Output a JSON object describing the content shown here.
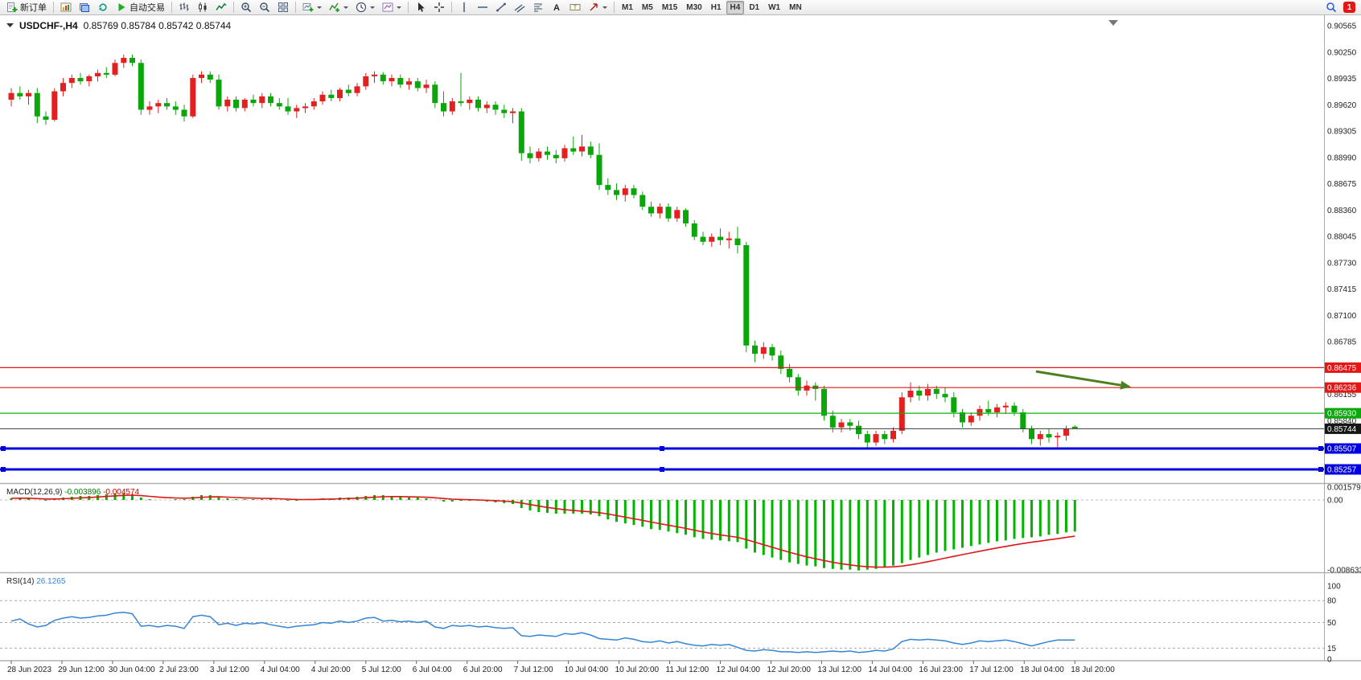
{
  "window": {
    "chart_title_symbol": "USDCHF-,H4",
    "chart_title_ohlc": "0.85769 0.85784 0.85742 0.85744"
  },
  "toolbar": {
    "new_order_label": "新订单",
    "autotrade_label": "自动交易",
    "timeframes": [
      "M1",
      "M5",
      "M15",
      "M30",
      "H1",
      "H4",
      "D1",
      "W1",
      "MN"
    ],
    "active_timeframe": "H4",
    "notification_badge": "1",
    "icon_names": [
      "new-order-icon",
      "chart-window-icon",
      "profiles-icon",
      "refresh-icon",
      "autotrade-play-icon",
      "ohlc-bars-icon",
      "candlestick-icon",
      "line-chart-icon",
      "zoom-in-icon",
      "zoom-out-icon",
      "tile-windows-icon",
      "new-chart-icon",
      "indicators-icon",
      "periods-clock-icon",
      "templates-icon",
      "cursor-icon",
      "crosshair-icon",
      "vertical-line-icon",
      "horizontal-line-icon",
      "trendline-icon",
      "channel-icon",
      "fibonacci-icon",
      "text-icon",
      "text-label-icon",
      "arrows-icon",
      "search-icon"
    ]
  },
  "chart_data": {
    "type": "candlestick",
    "symbol": "USDCHF-",
    "timeframe": "H4",
    "ohlc_display": {
      "open": "0.85769",
      "high": "0.85784",
      "low": "0.85742",
      "close": "0.85744"
    },
    "pip": 0.0001,
    "colors": {
      "up": "#e32020",
      "down": "#0aa60a",
      "background": "#ffffff"
    },
    "price_axis": {
      "ylim": [
        0.85094,
        0.90642
      ],
      "tick_labels": [
        "0.90565",
        "0.90250",
        "0.89935",
        "0.89620",
        "0.89305",
        "0.88990",
        "0.88675",
        "0.88360",
        "0.88045",
        "0.87730",
        "0.87415",
        "0.87100",
        "0.86785",
        "0.86155",
        "0.85840"
      ]
    },
    "candles_ohlc_pips": [
      [
        8968,
        8982,
        8960,
        8976
      ],
      [
        8976,
        8984,
        8968,
        8972
      ],
      [
        8972,
        8980,
        8962,
        8976
      ],
      [
        8976,
        8982,
        8940,
        8948
      ],
      [
        8948,
        8954,
        8938,
        8944
      ],
      [
        8944,
        8982,
        8942,
        8978
      ],
      [
        8978,
        8994,
        8972,
        8988
      ],
      [
        8988,
        8998,
        8982,
        8994
      ],
      [
        8994,
        9000,
        8986,
        8990
      ],
      [
        8990,
        8998,
        8984,
        8996
      ],
      [
        8996,
        9004,
        8990,
        9000
      ],
      [
        9000,
        9007,
        8994,
        8998
      ],
      [
        8998,
        9016,
        8996,
        9012
      ],
      [
        9012,
        9022,
        9006,
        9018
      ],
      [
        9018,
        9022,
        9008,
        9012
      ],
      [
        9012,
        9016,
        8950,
        8956
      ],
      [
        8956,
        8966,
        8950,
        8960
      ],
      [
        8960,
        8968,
        8952,
        8964
      ],
      [
        8964,
        8970,
        8956,
        8960
      ],
      [
        8960,
        8966,
        8950,
        8956
      ],
      [
        8956,
        8962,
        8942,
        8948
      ],
      [
        8948,
        8998,
        8946,
        8994
      ],
      [
        8994,
        9002,
        8988,
        8998
      ],
      [
        8998,
        9002,
        8988,
        8992
      ],
      [
        8992,
        8998,
        8956,
        8960
      ],
      [
        8960,
        8972,
        8954,
        8968
      ],
      [
        8968,
        8972,
        8954,
        8958
      ],
      [
        8958,
        8970,
        8954,
        8968
      ],
      [
        8968,
        8974,
        8960,
        8964
      ],
      [
        8964,
        8976,
        8958,
        8972
      ],
      [
        8972,
        8976,
        8960,
        8964
      ],
      [
        8964,
        8970,
        8956,
        8960
      ],
      [
        8960,
        8970,
        8950,
        8954
      ],
      [
        8954,
        8962,
        8946,
        8958
      ],
      [
        8958,
        8964,
        8952,
        8960
      ],
      [
        8960,
        8970,
        8956,
        8966
      ],
      [
        8966,
        8978,
        8962,
        8974
      ],
      [
        8974,
        8980,
        8966,
        8970
      ],
      [
        8970,
        8982,
        8966,
        8980
      ],
      [
        8980,
        8986,
        8972,
        8976
      ],
      [
        8976,
        8988,
        8972,
        8984
      ],
      [
        8984,
        9000,
        8980,
        8996
      ],
      [
        8996,
        9002,
        8988,
        8998
      ],
      [
        8998,
        9001,
        8986,
        8990
      ],
      [
        8990,
        8998,
        8984,
        8994
      ],
      [
        8994,
        8998,
        8982,
        8986
      ],
      [
        8986,
        8994,
        8980,
        8990
      ],
      [
        8990,
        8994,
        8978,
        8982
      ],
      [
        8982,
        8992,
        8976,
        8986
      ],
      [
        8986,
        8990,
        8958,
        8964
      ],
      [
        8964,
        8978,
        8948,
        8954
      ],
      [
        8954,
        8970,
        8950,
        8966
      ],
      [
        8966,
        9000,
        8960,
        8964
      ],
      [
        8964,
        8972,
        8956,
        8968
      ],
      [
        8968,
        8972,
        8954,
        8958
      ],
      [
        8958,
        8966,
        8952,
        8962
      ],
      [
        8962,
        8966,
        8950,
        8956
      ],
      [
        8956,
        8962,
        8946,
        8952
      ],
      [
        8952,
        8958,
        8940,
        8954
      ],
      [
        8954,
        8958,
        8895,
        8904
      ],
      [
        8904,
        8912,
        8892,
        8898
      ],
      [
        8898,
        8910,
        8894,
        8906
      ],
      [
        8906,
        8912,
        8896,
        8902
      ],
      [
        8902,
        8908,
        8892,
        8898
      ],
      [
        8898,
        8914,
        8894,
        8910
      ],
      [
        8910,
        8924,
        8902,
        8906
      ],
      [
        8906,
        8926,
        8900,
        8912
      ],
      [
        8912,
        8918,
        8898,
        8902
      ],
      [
        8902,
        8916,
        8860,
        8866
      ],
      [
        8866,
        8874,
        8854,
        8860
      ],
      [
        8860,
        8868,
        8848,
        8854
      ],
      [
        8854,
        8866,
        8846,
        8862
      ],
      [
        8862,
        8866,
        8850,
        8854
      ],
      [
        8854,
        8858,
        8836,
        8840
      ],
      [
        8840,
        8846,
        8828,
        8832
      ],
      [
        8832,
        8844,
        8826,
        8840
      ],
      [
        8840,
        8844,
        8822,
        8826
      ],
      [
        8826,
        8840,
        8822,
        8836
      ],
      [
        8836,
        8838,
        8816,
        8820
      ],
      [
        8820,
        8824,
        8800,
        8804
      ],
      [
        8804,
        8810,
        8794,
        8798
      ],
      [
        8798,
        8808,
        8792,
        8804
      ],
      [
        8804,
        8814,
        8794,
        8800
      ],
      [
        8800,
        8810,
        8790,
        8802
      ],
      [
        8802,
        8816,
        8784,
        8794
      ],
      [
        8794,
        8798,
        8666,
        8674
      ],
      [
        8674,
        8680,
        8654,
        8664
      ],
      [
        8664,
        8678,
        8658,
        8672
      ],
      [
        8672,
        8676,
        8656,
        8662
      ],
      [
        8662,
        8668,
        8640,
        8646
      ],
      [
        8646,
        8652,
        8630,
        8636
      ],
      [
        8636,
        8640,
        8614,
        8620
      ],
      [
        8620,
        8632,
        8614,
        8626
      ],
      [
        8626,
        8630,
        8608,
        8622
      ],
      [
        8622,
        8626,
        8584,
        8590
      ],
      [
        8590,
        8596,
        8570,
        8576
      ],
      [
        8576,
        8586,
        8570,
        8582
      ],
      [
        8582,
        8586,
        8572,
        8578
      ],
      [
        8578,
        8584,
        8562,
        8568
      ],
      [
        8568,
        8572,
        8552,
        8558
      ],
      [
        8558,
        8572,
        8554,
        8568
      ],
      [
        8568,
        8572,
        8556,
        8562
      ],
      [
        8562,
        8576,
        8558,
        8572
      ],
      [
        8572,
        8618,
        8568,
        8612
      ],
      [
        8612,
        8630,
        8606,
        8620
      ],
      [
        8620,
        8626,
        8608,
        8614
      ],
      [
        8614,
        8628,
        8608,
        8622
      ],
      [
        8622,
        8626,
        8610,
        8616
      ],
      [
        8616,
        8624,
        8606,
        8612
      ],
      [
        8612,
        8618,
        8588,
        8594
      ],
      [
        8594,
        8598,
        8576,
        8582
      ],
      [
        8582,
        8594,
        8578,
        8590
      ],
      [
        8590,
        8602,
        8584,
        8598
      ],
      [
        8598,
        8608,
        8590,
        8594
      ],
      [
        8594,
        8604,
        8588,
        8600
      ],
      [
        8600,
        8606,
        8592,
        8602
      ],
      [
        8602,
        8606,
        8590,
        8594
      ],
      [
        8594,
        8598,
        8570,
        8574
      ],
      [
        8574,
        8578,
        8556,
        8562
      ],
      [
        8562,
        8572,
        8554,
        8568
      ],
      [
        8568,
        8574,
        8558,
        8564
      ],
      [
        8564,
        8570,
        8550,
        8566
      ],
      [
        8566,
        8578,
        8560,
        8574
      ],
      [
        8576.9,
        8578.4,
        8574.2,
        8574.4
      ]
    ],
    "hlines": [
      {
        "price": 0.86475,
        "color": "#e41616",
        "width": 1.2,
        "label_bg": "#e41616",
        "handles": false
      },
      {
        "price": 0.86236,
        "color": "#e41616",
        "width": 1.2,
        "label_bg": "#e41616",
        "handles": false
      },
      {
        "price": 0.8593,
        "color": "#0db40d",
        "width": 1.2,
        "label_bg": "#0aa80a",
        "handles": false
      },
      {
        "price": 0.85507,
        "color": "#0000e0",
        "width": 3,
        "label_bg": "#0000e0",
        "handles": true
      },
      {
        "price": 0.85257,
        "color": "#0000e0",
        "width": 3,
        "label_bg": "#0000e0",
        "handles": true
      }
    ],
    "current_price": {
      "value": 0.85744,
      "line_color": "#3c3c3c",
      "label_bg": "#161616"
    },
    "trend_arrow": {
      "from_index": 118.5,
      "from_price": 0.8643,
      "to_index": 129.5,
      "to_price": 0.86245,
      "color": "#4e7f1f"
    },
    "time_axis": {
      "labels": [
        "28 Jun 2023",
        "29 Jun 12:00",
        "30 Jun 04:00",
        "2 Jul 23:00",
        "3 Jul 12:00",
        "4 Jul 04:00",
        "4 Jul 20:00",
        "5 Jul 12:00",
        "6 Jul 04:00",
        "6 Jul 20:00",
        "7 Jul 12:00",
        "10 Jul 04:00",
        "10 Jul 20:00",
        "11 Jul 12:00",
        "12 Jul 04:00",
        "12 Jul 20:00",
        "13 Jul 12:00",
        "14 Jul 04:00",
        "16 Jul 23:00",
        "17 Jul 12:00",
        "18 Jul 04:00",
        "18 Jul 20:00"
      ]
    },
    "indicators": [
      {
        "name": "MACD",
        "label": "MACD(12,26,9)",
        "values": [
          "-0.003896",
          "-0.004574"
        ],
        "value_colors": [
          "#007800",
          "#c40000"
        ],
        "axis_labels": [
          "0.001579",
          "0.00",
          "-0.008633"
        ],
        "ylim": [
          -0.00893,
          0.00189
        ],
        "hist_color": "#00b400",
        "signal_color": "#e01616",
        "signal_period": 9,
        "macd_x1e4": [
          2,
          3,
          2,
          0,
          -1,
          1,
          3,
          4,
          5,
          5,
          6,
          7,
          8,
          8,
          7,
          3,
          1,
          0,
          0,
          1,
          1,
          4,
          6,
          6,
          4,
          2,
          1,
          1,
          1,
          1,
          1,
          0,
          -1,
          -1,
          0,
          1,
          2,
          2,
          3,
          3,
          4,
          5,
          6,
          6,
          5,
          4,
          3,
          3,
          2,
          0,
          -2,
          -2,
          -1,
          -1,
          -1,
          -2,
          -3,
          -4,
          -5,
          -10,
          -13,
          -15,
          -16,
          -17,
          -17,
          -17,
          -17,
          -18,
          -20,
          -24,
          -27,
          -29,
          -31,
          -33,
          -36,
          -37,
          -39,
          -41,
          -43,
          -46,
          -48,
          -49,
          -50,
          -51,
          -52,
          -60,
          -65,
          -68,
          -71,
          -74,
          -77,
          -79,
          -81,
          -82,
          -84,
          -85,
          -86,
          -86,
          -87,
          -86,
          -85,
          -83,
          -81,
          -78,
          -74,
          -71,
          -68,
          -65,
          -63,
          -61,
          -59,
          -57,
          -55,
          -53,
          -51,
          -50,
          -48,
          -47,
          -46,
          -45,
          -43,
          -42,
          -40,
          -39
        ]
      },
      {
        "name": "RSI",
        "label": "RSI(14)",
        "value": "26.1265",
        "line_color": "#3584d6",
        "levels": [
          80,
          50,
          15
        ],
        "axis_labels": [
          "100",
          "80",
          "50",
          "15",
          "0"
        ],
        "ylim": [
          0,
          100
        ],
        "values": [
          52,
          55,
          48,
          44,
          46,
          53,
          56,
          58,
          56,
          57,
          59,
          60,
          63,
          64,
          62,
          45,
          46,
          44,
          46,
          45,
          42,
          58,
          60,
          58,
          47,
          49,
          46,
          49,
          48,
          50,
          47,
          45,
          43,
          45,
          46,
          47,
          50,
          49,
          52,
          50,
          52,
          56,
          57,
          52,
          53,
          51,
          52,
          50,
          52,
          44,
          42,
          46,
          45,
          46,
          44,
          45,
          43,
          42,
          43,
          32,
          31,
          33,
          32,
          31,
          35,
          34,
          36,
          33,
          28,
          27,
          26,
          29,
          27,
          24,
          23,
          25,
          22,
          24,
          21,
          19,
          18,
          20,
          19,
          20,
          16,
          12,
          11,
          13,
          12,
          10,
          10,
          9,
          10,
          9,
          10,
          11,
          10,
          11,
          9,
          10,
          12,
          11,
          14,
          24,
          27,
          26,
          27,
          26,
          25,
          22,
          20,
          22,
          25,
          24,
          25,
          26,
          24,
          21,
          18,
          21,
          24,
          26,
          26,
          26.1
        ]
      }
    ]
  }
}
